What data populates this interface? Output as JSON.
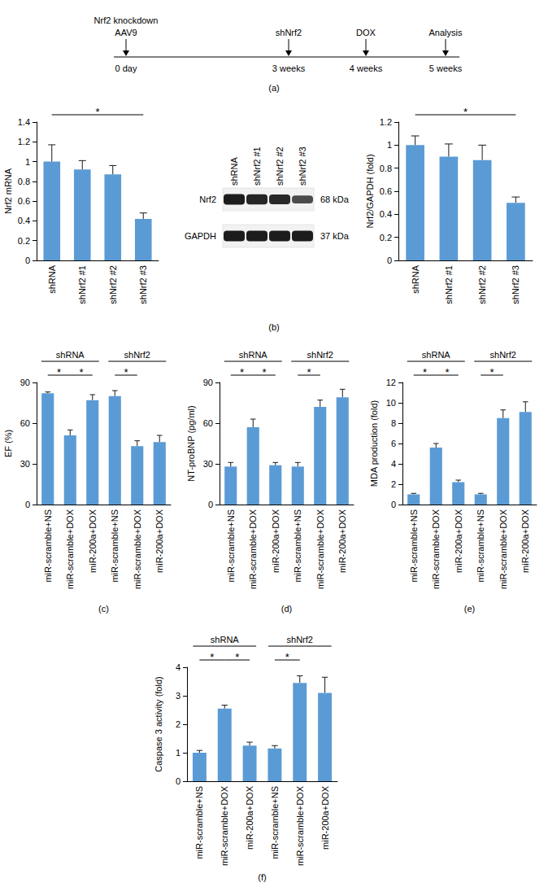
{
  "timeline": {
    "panel": "(a)",
    "events": [
      {
        "above": [
          "Nrf2 knockdown",
          "AAV9"
        ],
        "below": "0 day"
      },
      {
        "above": [
          "shNrf2"
        ],
        "below": "3 weeks"
      },
      {
        "above": [
          "DOX"
        ],
        "below": "4 weeks"
      },
      {
        "above": [
          "Analysis"
        ],
        "below": "5 weeks"
      }
    ]
  },
  "blot": {
    "panel": "(b)",
    "lanes": [
      "shRNA",
      "shNrf2 #1",
      "shNrf2 #2",
      "shNrf2 #3"
    ],
    "bands": [
      {
        "name": "Nrf2",
        "size": "68 kDa"
      },
      {
        "name": "GAPDH",
        "size": "37 kDa"
      }
    ]
  },
  "chart_data": [
    {
      "type": "bar",
      "ylabel": "Nrf2 mRNA",
      "categories": [
        "shRNA",
        "shNrf2 #1",
        "shNrf2 #2",
        "shNrf2 #3"
      ],
      "values": [
        1.0,
        0.92,
        0.87,
        0.42
      ],
      "errors": [
        0.17,
        0.09,
        0.09,
        0.06
      ],
      "color": "#5b9bd5",
      "ylim": [
        0,
        1.4
      ],
      "yticks": [
        0,
        0.2,
        0.4,
        0.6,
        0.8,
        1,
        1.2,
        1.4
      ],
      "grid": false,
      "annotations": [
        {
          "text": "*",
          "from": 0,
          "to": 3
        }
      ]
    },
    {
      "type": "bar",
      "ylabel": "Nrf2/GAPDH (fold)",
      "categories": [
        "shRNA",
        "shNrf2 #1",
        "shNrf2 #2",
        "shNrf2 #3"
      ],
      "values": [
        1.0,
        0.9,
        0.87,
        0.5
      ],
      "errors": [
        0.08,
        0.11,
        0.13,
        0.05
      ],
      "color": "#5b9bd5",
      "ylim": [
        0,
        1.2
      ],
      "yticks": [
        0,
        0.2,
        0.4,
        0.6,
        0.8,
        1,
        1.2
      ],
      "grid": false,
      "annotations": [
        {
          "text": "*",
          "from": 0,
          "to": 3
        }
      ]
    },
    {
      "type": "bar",
      "panel": "(c)",
      "ylabel": "EF (%)",
      "categories": [
        "miR-scramble+NS",
        "miR-scramble+DOX",
        "miR-200a+DOX",
        "miR-scramble+NS",
        "miR-scramble+DOX",
        "miR-200a+DOX"
      ],
      "values": [
        82,
        51,
        77,
        80,
        43,
        46
      ],
      "errors": [
        1,
        4,
        4,
        4,
        4,
        5
      ],
      "color": "#5b9bd5",
      "ylim": [
        0,
        90
      ],
      "yticks": [
        0,
        30,
        60,
        90
      ],
      "grid": false,
      "groups": [
        {
          "label": "shRNA",
          "from": 0,
          "to": 2
        },
        {
          "label": "shNrf2",
          "from": 3,
          "to": 5
        }
      ],
      "annotations": [
        {
          "text": "*",
          "from": 0,
          "to": 1
        },
        {
          "text": "*",
          "from": 1,
          "to": 2
        },
        {
          "text": "*",
          "from": 3,
          "to": 4
        }
      ]
    },
    {
      "type": "bar",
      "panel": "(d)",
      "ylabel": "NT-proBNP (pg/ml)",
      "categories": [
        "miR-scramble+NS",
        "miR-scramble+DOX",
        "miR-200a+DOX",
        "miR-scramble+NS",
        "miR-scramble+DOX",
        "miR-200a+DOX"
      ],
      "values": [
        28,
        57,
        29,
        28,
        72,
        79
      ],
      "errors": [
        3,
        6,
        2,
        3,
        5,
        6
      ],
      "color": "#5b9bd5",
      "ylim": [
        0,
        90
      ],
      "yticks": [
        0,
        30,
        60,
        90
      ],
      "grid": false,
      "groups": [
        {
          "label": "shRNA",
          "from": 0,
          "to": 2
        },
        {
          "label": "shNrf2",
          "from": 3,
          "to": 5
        }
      ],
      "annotations": [
        {
          "text": "*",
          "from": 0,
          "to": 1
        },
        {
          "text": "*",
          "from": 1,
          "to": 2
        },
        {
          "text": "*",
          "from": 3,
          "to": 4
        }
      ]
    },
    {
      "type": "bar",
      "panel": "(e)",
      "ylabel": "MDA production (fold)",
      "categories": [
        "miR-scramble+NS",
        "miR-scramble+DOX",
        "miR-200a+DOX",
        "miR-scramble+NS",
        "miR-scramble+DOX",
        "miR-200a+DOX"
      ],
      "values": [
        1.0,
        5.6,
        2.2,
        1.0,
        8.5,
        9.1
      ],
      "errors": [
        0.1,
        0.4,
        0.2,
        0.1,
        0.8,
        1.0
      ],
      "color": "#5b9bd5",
      "ylim": [
        0,
        12
      ],
      "yticks": [
        0,
        2,
        4,
        6,
        8,
        10,
        12
      ],
      "grid": false,
      "groups": [
        {
          "label": "shRNA",
          "from": 0,
          "to": 2
        },
        {
          "label": "shNrf2",
          "from": 3,
          "to": 5
        }
      ],
      "annotations": [
        {
          "text": "*",
          "from": 0,
          "to": 1
        },
        {
          "text": "*",
          "from": 1,
          "to": 2
        },
        {
          "text": "*",
          "from": 3,
          "to": 4
        }
      ]
    },
    {
      "type": "bar",
      "panel": "(f)",
      "ylabel": "Caspase 3 activity (fold)",
      "categories": [
        "miR-scramble+NS",
        "miR-scramble+DOX",
        "miR-200a+DOX",
        "miR-scramble+NS",
        "miR-scramble+DOX",
        "miR-200a+DOX"
      ],
      "values": [
        1.0,
        2.55,
        1.25,
        1.15,
        3.45,
        3.1
      ],
      "errors": [
        0.08,
        0.12,
        0.12,
        0.1,
        0.25,
        0.55
      ],
      "color": "#5b9bd5",
      "ylim": [
        0,
        4
      ],
      "yticks": [
        0,
        1,
        2,
        3,
        4
      ],
      "grid": false,
      "groups": [
        {
          "label": "shRNA",
          "from": 0,
          "to": 2
        },
        {
          "label": "shNrf2",
          "from": 3,
          "to": 5
        }
      ],
      "annotations": [
        {
          "text": "*",
          "from": 0,
          "to": 1
        },
        {
          "text": "*",
          "from": 1,
          "to": 2
        },
        {
          "text": "*",
          "from": 3,
          "to": 4
        }
      ]
    }
  ]
}
